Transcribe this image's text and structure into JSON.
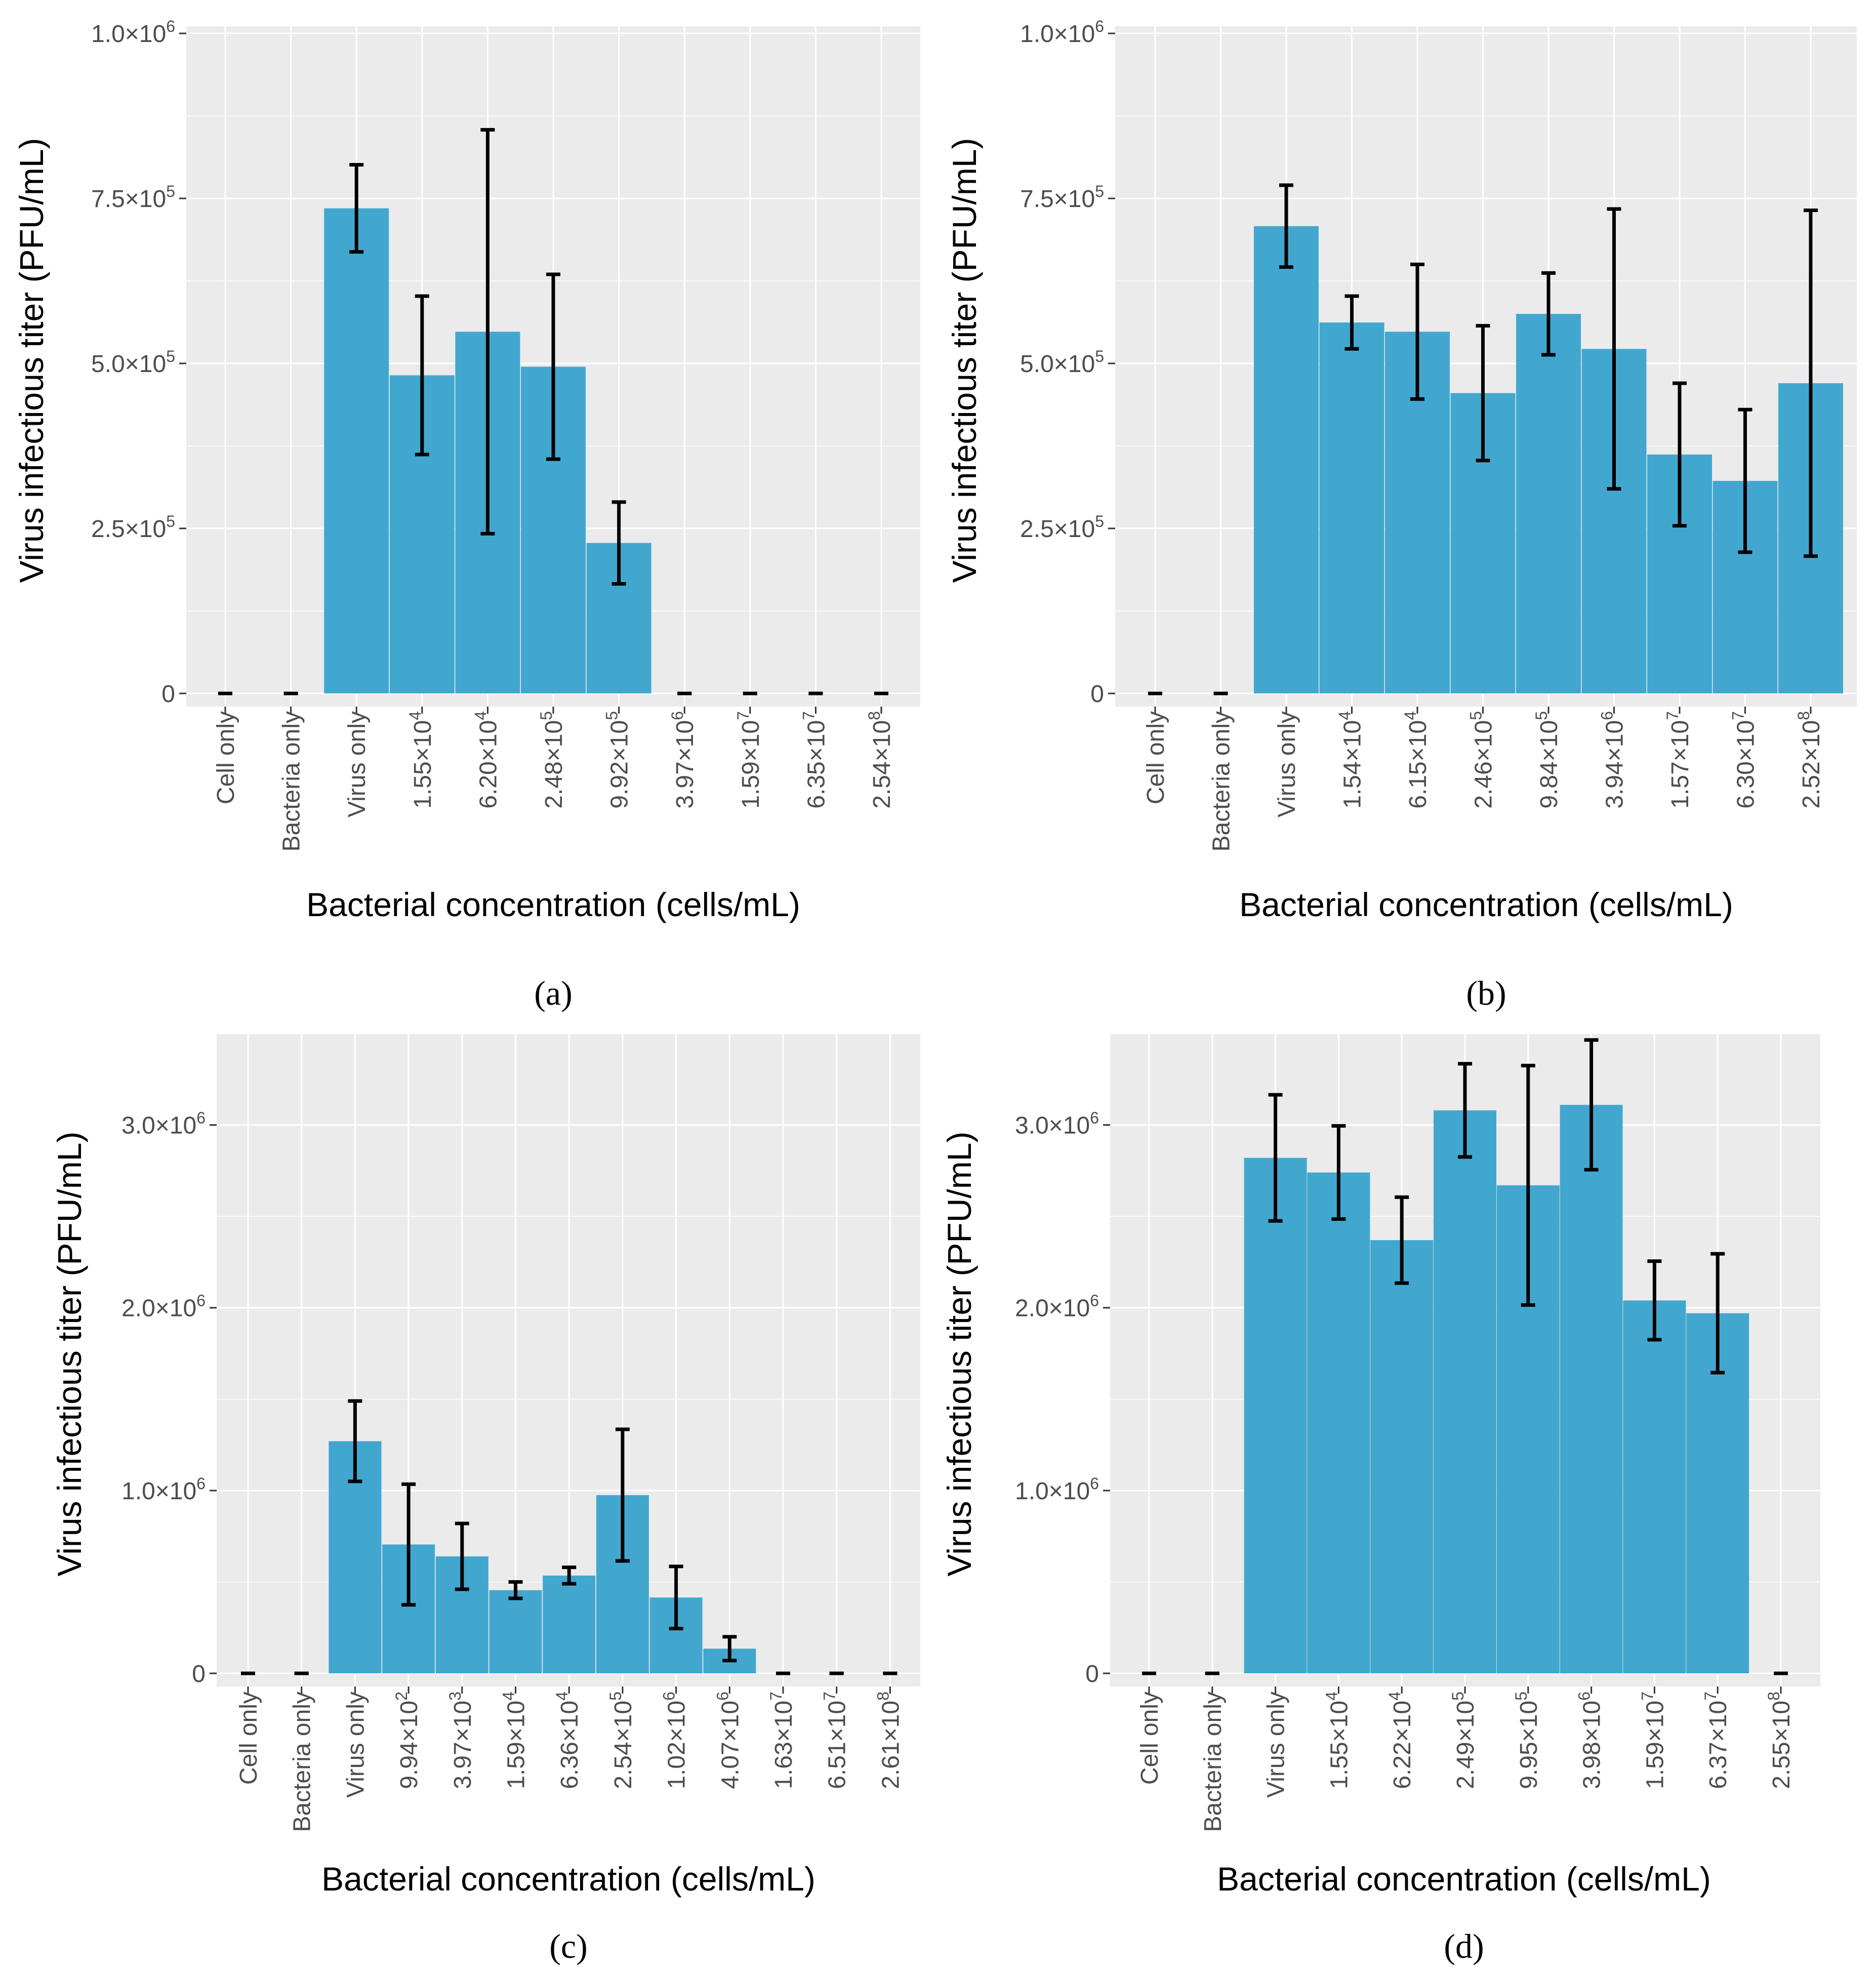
{
  "colors": {
    "bar": "#42a7cf",
    "panel_bg": "#ebebeb",
    "grid": "#ffffff",
    "error": "#000000"
  },
  "chart_data": [
    {
      "panel": "(a)",
      "type": "bar",
      "xlabel": "Bacterial concentration (cells/mL)",
      "ylabel": "Virus infectious titer (PFU/mL)",
      "ylim": [
        0,
        1000000
      ],
      "yticks": [
        {
          "value": 0,
          "base": "0",
          "exp": ""
        },
        {
          "value": 250000,
          "base": "2.5×10",
          "exp": "5"
        },
        {
          "value": 500000,
          "base": "5.0×10",
          "exp": "5"
        },
        {
          "value": 750000,
          "base": "7.5×10",
          "exp": "5"
        },
        {
          "value": 1000000,
          "base": "1.0×10",
          "exp": "6"
        }
      ],
      "categories": [
        {
          "base": "Cell only",
          "exp": ""
        },
        {
          "base": "Bacteria only",
          "exp": ""
        },
        {
          "base": "Virus only",
          "exp": ""
        },
        {
          "base": "1.55×10",
          "exp": "4"
        },
        {
          "base": "6.20×10",
          "exp": "4"
        },
        {
          "base": "2.48×10",
          "exp": "5"
        },
        {
          "base": "9.92×10",
          "exp": "5"
        },
        {
          "base": "3.97×10",
          "exp": "6"
        },
        {
          "base": "1.59×10",
          "exp": "7"
        },
        {
          "base": "6.35×10",
          "exp": "7"
        },
        {
          "base": "2.54×10",
          "exp": "8"
        }
      ],
      "values": [
        0,
        0,
        735000,
        482000,
        548000,
        495000,
        228000,
        0,
        0,
        0,
        0
      ],
      "errors": [
        0,
        0,
        66000,
        120000,
        306000,
        140000,
        62000,
        0,
        0,
        0,
        0
      ]
    },
    {
      "panel": "(b)",
      "type": "bar",
      "xlabel": "Bacterial concentration (cells/mL)",
      "ylabel": "Virus infectious titer (PFU/mL)",
      "ylim": [
        0,
        1000000
      ],
      "yticks": [
        {
          "value": 0,
          "base": "0",
          "exp": ""
        },
        {
          "value": 250000,
          "base": "2.5×10",
          "exp": "5"
        },
        {
          "value": 500000,
          "base": "5.0×10",
          "exp": "5"
        },
        {
          "value": 750000,
          "base": "7.5×10",
          "exp": "5"
        },
        {
          "value": 1000000,
          "base": "1.0×10",
          "exp": "6"
        }
      ],
      "categories": [
        {
          "base": "Cell only",
          "exp": ""
        },
        {
          "base": "Bacteria only",
          "exp": ""
        },
        {
          "base": "Virus only",
          "exp": ""
        },
        {
          "base": "1.54×10",
          "exp": "4"
        },
        {
          "base": "6.15×10",
          "exp": "4"
        },
        {
          "base": "2.46×10",
          "exp": "5"
        },
        {
          "base": "9.84×10",
          "exp": "5"
        },
        {
          "base": "3.94×10",
          "exp": "6"
        },
        {
          "base": "1.57×10",
          "exp": "7"
        },
        {
          "base": "6.30×10",
          "exp": "7"
        },
        {
          "base": "2.52×10",
          "exp": "8"
        }
      ],
      "values": [
        0,
        0,
        708000,
        562000,
        548000,
        455000,
        575000,
        522000,
        362000,
        322000,
        470000
      ],
      "errors": [
        0,
        0,
        62000,
        40000,
        102000,
        102000,
        62000,
        212000,
        108000,
        108000,
        262000
      ]
    },
    {
      "panel": "(c)",
      "type": "bar",
      "xlabel": "Bacterial concentration (cells/mL)",
      "ylabel": "Virus infectious titer (PFU/mL)",
      "ylim": [
        0,
        3500000
      ],
      "yticks": [
        {
          "value": 0,
          "base": "0",
          "exp": ""
        },
        {
          "value": 1000000,
          "base": "1.0×10",
          "exp": "6"
        },
        {
          "value": 2000000,
          "base": "2.0×10",
          "exp": "6"
        },
        {
          "value": 3000000,
          "base": "3.0×10",
          "exp": "6"
        }
      ],
      "categories": [
        {
          "base": "Cell only",
          "exp": ""
        },
        {
          "base": "Bacteria only",
          "exp": ""
        },
        {
          "base": "Virus only",
          "exp": ""
        },
        {
          "base": "9.94×10",
          "exp": "2"
        },
        {
          "base": "3.97×10",
          "exp": "3"
        },
        {
          "base": "1.59×10",
          "exp": "4"
        },
        {
          "base": "6.36×10",
          "exp": "4"
        },
        {
          "base": "2.54×10",
          "exp": "5"
        },
        {
          "base": "1.02×10",
          "exp": "6"
        },
        {
          "base": "4.07×10",
          "exp": "6"
        },
        {
          "base": "1.63×10",
          "exp": "7"
        },
        {
          "base": "6.51×10",
          "exp": "7"
        },
        {
          "base": "2.61×10",
          "exp": "8"
        }
      ],
      "values": [
        0,
        0,
        1270000,
        705000,
        640000,
        455000,
        535000,
        975000,
        415000,
        135000,
        0,
        0,
        0
      ],
      "errors": [
        0,
        0,
        220000,
        330000,
        180000,
        45000,
        45000,
        360000,
        170000,
        65000,
        0,
        0,
        0
      ]
    },
    {
      "panel": "(d)",
      "type": "bar",
      "xlabel": "Bacterial concentration (cells/mL)",
      "ylabel": "Virus infectious titer (PFU/mL)",
      "ylim": [
        0,
        3500000
      ],
      "yticks": [
        {
          "value": 0,
          "base": "0",
          "exp": ""
        },
        {
          "value": 1000000,
          "base": "1.0×10",
          "exp": "6"
        },
        {
          "value": 2000000,
          "base": "2.0×10",
          "exp": "6"
        },
        {
          "value": 3000000,
          "base": "3.0×10",
          "exp": "6"
        }
      ],
      "categories": [
        {
          "base": "Cell only",
          "exp": ""
        },
        {
          "base": "Bacteria only",
          "exp": ""
        },
        {
          "base": "Virus only",
          "exp": ""
        },
        {
          "base": "1.55×10",
          "exp": "4"
        },
        {
          "base": "6.22×10",
          "exp": "4"
        },
        {
          "base": "2.49×10",
          "exp": "5"
        },
        {
          "base": "9.95×10",
          "exp": "5"
        },
        {
          "base": "3.98×10",
          "exp": "6"
        },
        {
          "base": "1.59×10",
          "exp": "7"
        },
        {
          "base": "6.37×10",
          "exp": "7"
        },
        {
          "base": "2.55×10",
          "exp": "8"
        }
      ],
      "values": [
        0,
        0,
        2820000,
        2740000,
        2370000,
        3080000,
        2670000,
        3110000,
        2040000,
        1970000,
        0
      ],
      "errors": [
        0,
        0,
        345000,
        255000,
        235000,
        255000,
        655000,
        355000,
        215000,
        325000,
        0
      ]
    }
  ]
}
